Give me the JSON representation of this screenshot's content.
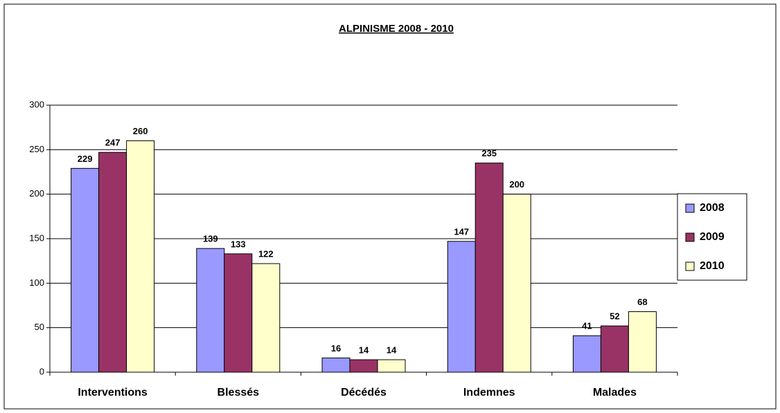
{
  "chart_data": {
    "type": "bar",
    "title": "ALPINISME 2008 - 2010",
    "categories": [
      "Interventions",
      "Blessés",
      "Décédés",
      "Indemnes",
      "Malades"
    ],
    "series": [
      {
        "name": "2008",
        "color": "#9999ff",
        "values": [
          229,
          139,
          16,
          147,
          41
        ]
      },
      {
        "name": "2009",
        "color": "#993366",
        "values": [
          247,
          133,
          14,
          235,
          52
        ]
      },
      {
        "name": "2010",
        "color": "#ffffcc",
        "values": [
          260,
          122,
          14,
          200,
          68
        ]
      }
    ],
    "ylim": [
      0,
      300
    ],
    "yticks": [
      0,
      50,
      100,
      150,
      200,
      250,
      300
    ],
    "grid": true,
    "legend": "right"
  }
}
